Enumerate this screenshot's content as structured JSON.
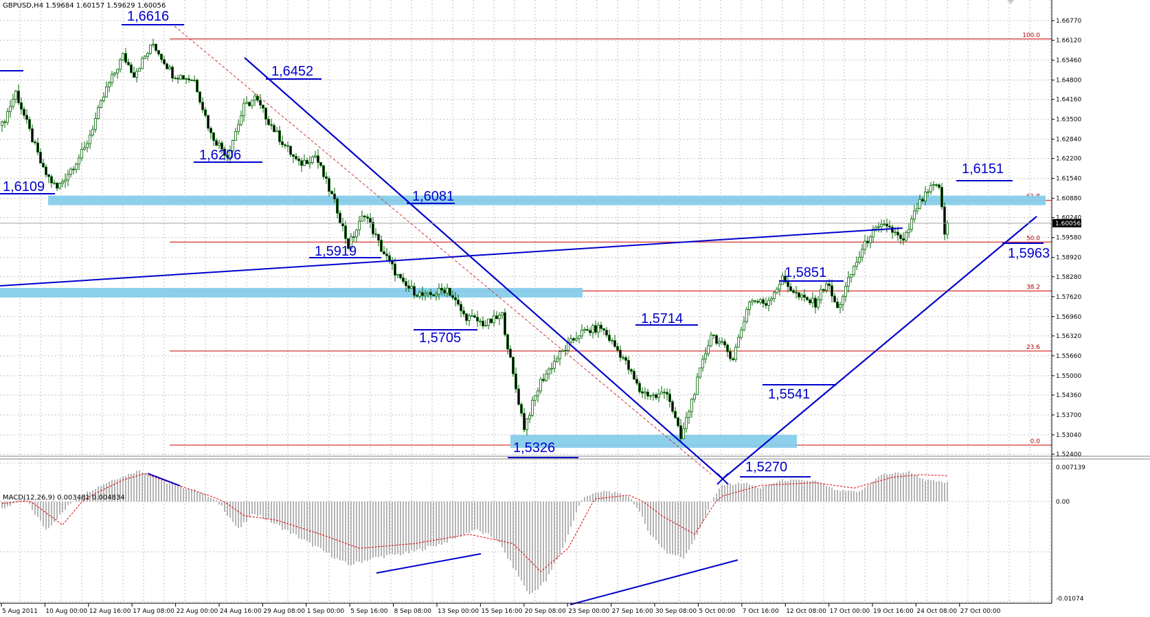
{
  "window": {
    "chart_title": "GBPUSD,H4  1.59684 1.60157 1.59629 1.60056",
    "indicator_title": "MACD(12,26,9) 0.003481 0.004834"
  },
  "colors": {
    "annotation": "#0000cc",
    "level_line": "#cc0000",
    "zone": "#87ceeb",
    "candle": "#006400",
    "macd_hist": "#b4b4b4",
    "macd_signal": "#dd0000",
    "grid": "#c0c0c0",
    "price_marker": "#000000"
  },
  "chart_data": [
    {
      "type": "candlestick",
      "symbol": "GBPUSD",
      "timeframe": "H4",
      "ylim": [
        1.524,
        1.6677
      ],
      "price_ticks": [
        "1.66770",
        "1.66120",
        "1.65460",
        "1.64800",
        "1.64160",
        "1.63500",
        "1.62840",
        "1.62200",
        "1.61540",
        "1.60880",
        "1.60240",
        "1.59580",
        "1.58920",
        "1.58280",
        "1.57620",
        "1.56960",
        "1.56320",
        "1.55660",
        "1.55000",
        "1.54360",
        "1.53700",
        "1.53040",
        "1.52400"
      ],
      "current_price": "1.60056",
      "x_ticks": [
        "5 Aug 2011",
        "10 Aug 00:00",
        "12 Aug 16:00",
        "17 Aug 08:00",
        "22 Aug 00:00",
        "24 Aug 16:00",
        "29 Aug 08:00",
        "1 Sep 00:00",
        "5 Sep 16:00",
        "8 Sep 08:00",
        "13 Sep 00:00",
        "15 Sep 16:00",
        "20 Sep 08:00",
        "23 Sep 00:00",
        "27 Sep 16:00",
        "30 Sep 08:00",
        "5 Oct 00:00",
        "7 Oct 16:00",
        "12 Oct 08:00",
        "17 Oct 00:00",
        "19 Oct 16:00",
        "24 Oct 08:00",
        "27 Oct 00:00"
      ],
      "fibonacci_levels": [
        {
          "label": "100.0",
          "price": 1.6616
        },
        {
          "label": "61.8",
          "price": 1.6081
        },
        {
          "label": "50.0",
          "price": 1.5943
        },
        {
          "label": "38.2",
          "price": 1.5781
        },
        {
          "label": "23.6",
          "price": 1.5582
        },
        {
          "label": "0.0",
          "price": 1.527
        }
      ],
      "annotations": [
        {
          "text": "1,6616",
          "price": 1.6616
        },
        {
          "text": "1,6452",
          "price": 1.6452
        },
        {
          "text": "1,6206",
          "price": 1.6206
        },
        {
          "text": "1,6109",
          "price": 1.6109
        },
        {
          "text": "1,6081",
          "price": 1.6081
        },
        {
          "text": "1,5919",
          "price": 1.5919
        },
        {
          "text": "1,5705",
          "price": 1.5705
        },
        {
          "text": "1,5714",
          "price": 1.5714
        },
        {
          "text": "1,5326",
          "price": 1.5326
        },
        {
          "text": "1,5270",
          "price": 1.527
        },
        {
          "text": "1,5541",
          "price": 1.5541
        },
        {
          "text": "1,5851",
          "price": 1.5851
        },
        {
          "text": "1,6151",
          "price": 1.6151
        },
        {
          "text": "1,5963",
          "price": 1.5963
        }
      ],
      "zones": [
        {
          "price_low": 1.6075,
          "price_high": 1.6088
        },
        {
          "price_low": 1.5773,
          "price_high": 1.5782
        },
        {
          "price_low": 1.527,
          "price_high": 1.5295
        }
      ],
      "pivots": [
        {
          "bar": 0,
          "price": 1.633
        },
        {
          "bar": 5,
          "price": 1.644
        },
        {
          "bar": 15,
          "price": 1.618
        },
        {
          "bar": 20,
          "price": 1.612
        },
        {
          "bar": 30,
          "price": 1.625
        },
        {
          "bar": 38,
          "price": 1.645
        },
        {
          "bar": 44,
          "price": 1.656
        },
        {
          "bar": 48,
          "price": 1.65
        },
        {
          "bar": 55,
          "price": 1.66
        },
        {
          "bar": 62,
          "price": 1.65
        },
        {
          "bar": 70,
          "price": 1.648
        },
        {
          "bar": 76,
          "price": 1.63
        },
        {
          "bar": 82,
          "price": 1.623
        },
        {
          "bar": 88,
          "price": 1.639
        },
        {
          "bar": 92,
          "price": 1.642
        },
        {
          "bar": 100,
          "price": 1.63
        },
        {
          "bar": 108,
          "price": 1.62
        },
        {
          "bar": 114,
          "price": 1.623
        },
        {
          "bar": 122,
          "price": 1.605
        },
        {
          "bar": 126,
          "price": 1.593
        },
        {
          "bar": 132,
          "price": 1.604
        },
        {
          "bar": 138,
          "price": 1.592
        },
        {
          "bar": 146,
          "price": 1.58
        },
        {
          "bar": 154,
          "price": 1.576
        },
        {
          "bar": 162,
          "price": 1.579
        },
        {
          "bar": 168,
          "price": 1.57
        },
        {
          "bar": 176,
          "price": 1.567
        },
        {
          "bar": 182,
          "price": 1.57
        },
        {
          "bar": 186,
          "price": 1.55
        },
        {
          "bar": 190,
          "price": 1.533
        },
        {
          "bar": 196,
          "price": 1.548
        },
        {
          "bar": 202,
          "price": 1.556
        },
        {
          "bar": 210,
          "price": 1.564
        },
        {
          "bar": 218,
          "price": 1.566
        },
        {
          "bar": 226,
          "price": 1.556
        },
        {
          "bar": 232,
          "price": 1.545
        },
        {
          "bar": 238,
          "price": 1.543
        },
        {
          "bar": 242,
          "price": 1.545
        },
        {
          "bar": 247,
          "price": 1.529
        },
        {
          "bar": 252,
          "price": 1.545
        },
        {
          "bar": 258,
          "price": 1.564
        },
        {
          "bar": 262,
          "price": 1.56
        },
        {
          "bar": 266,
          "price": 1.556
        },
        {
          "bar": 272,
          "price": 1.575
        },
        {
          "bar": 278,
          "price": 1.574
        },
        {
          "bar": 284,
          "price": 1.582
        },
        {
          "bar": 290,
          "price": 1.576
        },
        {
          "bar": 296,
          "price": 1.574
        },
        {
          "bar": 300,
          "price": 1.581
        },
        {
          "bar": 304,
          "price": 1.572
        },
        {
          "bar": 310,
          "price": 1.586
        },
        {
          "bar": 316,
          "price": 1.597
        },
        {
          "bar": 322,
          "price": 1.6
        },
        {
          "bar": 328,
          "price": 1.594
        },
        {
          "bar": 333,
          "price": 1.606
        },
        {
          "bar": 338,
          "price": 1.612
        },
        {
          "bar": 341,
          "price": 1.613
        },
        {
          "bar": 343,
          "price": 1.597
        },
        {
          "bar": 344,
          "price": 1.6006
        }
      ]
    },
    {
      "type": "histogram",
      "name": "MACD(12,26,9)",
      "ylim": [
        -0.01074,
        0.007139
      ],
      "y_ticks": [
        "0.007139",
        "0.00",
        "-0.01074"
      ],
      "macd": "0.003481",
      "signal": "0.004834",
      "hist_pivots": [
        {
          "bar": 0,
          "v": -0.0008
        },
        {
          "bar": 8,
          "v": 0.0004
        },
        {
          "bar": 16,
          "v": -0.003
        },
        {
          "bar": 22,
          "v": -0.0012
        },
        {
          "bar": 30,
          "v": 0.0015
        },
        {
          "bar": 40,
          "v": 0.004
        },
        {
          "bar": 50,
          "v": 0.0058
        },
        {
          "bar": 60,
          "v": 0.0035
        },
        {
          "bar": 72,
          "v": 0.0018
        },
        {
          "bar": 80,
          "v": -0.0005
        },
        {
          "bar": 86,
          "v": -0.003
        },
        {
          "bar": 92,
          "v": -0.0012
        },
        {
          "bar": 100,
          "v": -0.0025
        },
        {
          "bar": 112,
          "v": -0.0045
        },
        {
          "bar": 126,
          "v": -0.0068
        },
        {
          "bar": 136,
          "v": -0.006
        },
        {
          "bar": 148,
          "v": -0.0055
        },
        {
          "bar": 160,
          "v": -0.0045
        },
        {
          "bar": 172,
          "v": -0.003
        },
        {
          "bar": 180,
          "v": -0.004
        },
        {
          "bar": 186,
          "v": -0.007
        },
        {
          "bar": 192,
          "v": -0.01
        },
        {
          "bar": 198,
          "v": -0.0085
        },
        {
          "bar": 204,
          "v": -0.005
        },
        {
          "bar": 212,
          "v": 0.001
        },
        {
          "bar": 220,
          "v": 0.002
        },
        {
          "bar": 228,
          "v": 0.001
        },
        {
          "bar": 236,
          "v": -0.0035
        },
        {
          "bar": 242,
          "v": -0.0055
        },
        {
          "bar": 248,
          "v": -0.006
        },
        {
          "bar": 254,
          "v": -0.003
        },
        {
          "bar": 262,
          "v": 0.003
        },
        {
          "bar": 270,
          "v": 0.0035
        },
        {
          "bar": 276,
          "v": 0.0025
        },
        {
          "bar": 284,
          "v": 0.004
        },
        {
          "bar": 296,
          "v": 0.0038
        },
        {
          "bar": 304,
          "v": 0.002
        },
        {
          "bar": 312,
          "v": 0.0018
        },
        {
          "bar": 320,
          "v": 0.005
        },
        {
          "bar": 330,
          "v": 0.0055
        },
        {
          "bar": 336,
          "v": 0.004
        },
        {
          "bar": 344,
          "v": 0.0035
        }
      ],
      "signal_pivots": [
        {
          "bar": 0,
          "v": -0.0002
        },
        {
          "bar": 10,
          "v": 0.0001
        },
        {
          "bar": 22,
          "v": -0.0025
        },
        {
          "bar": 32,
          "v": 0.001
        },
        {
          "bar": 44,
          "v": 0.004
        },
        {
          "bar": 52,
          "v": 0.0052
        },
        {
          "bar": 64,
          "v": 0.003
        },
        {
          "bar": 76,
          "v": 0.001
        },
        {
          "bar": 88,
          "v": -0.0015
        },
        {
          "bar": 100,
          "v": -0.002
        },
        {
          "bar": 116,
          "v": -0.0035
        },
        {
          "bar": 130,
          "v": -0.005
        },
        {
          "bar": 150,
          "v": -0.0045
        },
        {
          "bar": 170,
          "v": -0.0035
        },
        {
          "bar": 186,
          "v": -0.0045
        },
        {
          "bar": 196,
          "v": -0.0075
        },
        {
          "bar": 206,
          "v": -0.005
        },
        {
          "bar": 216,
          "v": 0.0005
        },
        {
          "bar": 228,
          "v": 0.0012
        },
        {
          "bar": 240,
          "v": -0.0015
        },
        {
          "bar": 252,
          "v": -0.0035
        },
        {
          "bar": 262,
          "v": 0.001
        },
        {
          "bar": 276,
          "v": 0.003
        },
        {
          "bar": 296,
          "v": 0.0035
        },
        {
          "bar": 310,
          "v": 0.0025
        },
        {
          "bar": 324,
          "v": 0.0045
        },
        {
          "bar": 334,
          "v": 0.005
        },
        {
          "bar": 344,
          "v": 0.0048
        }
      ]
    }
  ]
}
